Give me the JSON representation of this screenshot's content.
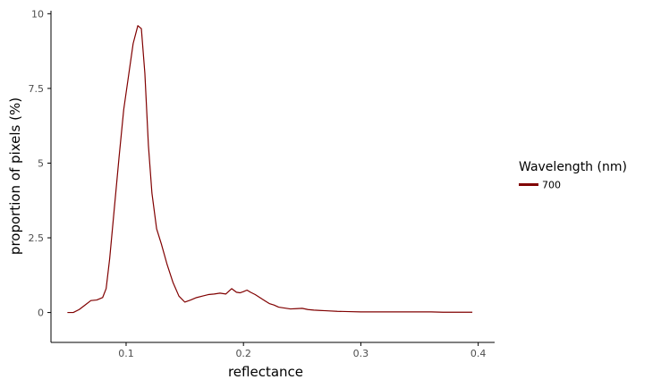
{
  "chart_data": {
    "type": "line",
    "xlabel": "reflectance",
    "ylabel": "proportion of pixels (%)",
    "xlim": [
      0.036,
      0.414
    ],
    "ylim": [
      -1.0,
      10.1
    ],
    "x_ticks": [
      0.1,
      0.2,
      0.3,
      0.4
    ],
    "x_tick_labels": [
      "0.1",
      "0.2",
      "0.3",
      "0.4"
    ],
    "y_ticks": [
      0,
      2.5,
      5,
      7.5,
      10
    ],
    "y_tick_labels": [
      "0",
      "2.5",
      "5",
      "7.5",
      "10"
    ],
    "grid": false,
    "legend": {
      "title": "Wavelength (nm)",
      "position": "right"
    },
    "series": [
      {
        "name": "700",
        "color": "#800000",
        "x": [
          0.05,
          0.055,
          0.06,
          0.065,
          0.07,
          0.075,
          0.08,
          0.083,
          0.086,
          0.09,
          0.094,
          0.098,
          0.102,
          0.106,
          0.11,
          0.113,
          0.116,
          0.119,
          0.122,
          0.126,
          0.13,
          0.135,
          0.14,
          0.145,
          0.15,
          0.155,
          0.16,
          0.165,
          0.17,
          0.175,
          0.18,
          0.185,
          0.19,
          0.194,
          0.197,
          0.2,
          0.203,
          0.206,
          0.21,
          0.214,
          0.218,
          0.222,
          0.226,
          0.23,
          0.235,
          0.24,
          0.245,
          0.25,
          0.255,
          0.26,
          0.265,
          0.27,
          0.28,
          0.29,
          0.3,
          0.31,
          0.32,
          0.33,
          0.34,
          0.35,
          0.36,
          0.37,
          0.38,
          0.39,
          0.395
        ],
        "y": [
          0.0,
          0.0,
          0.1,
          0.25,
          0.4,
          0.42,
          0.5,
          0.8,
          1.8,
          3.5,
          5.2,
          6.8,
          7.9,
          9.0,
          9.6,
          9.5,
          8.0,
          5.6,
          4.0,
          2.8,
          2.3,
          1.6,
          1.0,
          0.55,
          0.35,
          0.42,
          0.5,
          0.55,
          0.6,
          0.62,
          0.65,
          0.62,
          0.8,
          0.68,
          0.66,
          0.7,
          0.75,
          0.68,
          0.6,
          0.5,
          0.4,
          0.3,
          0.25,
          0.18,
          0.15,
          0.12,
          0.13,
          0.14,
          0.1,
          0.08,
          0.07,
          0.06,
          0.04,
          0.03,
          0.02,
          0.02,
          0.02,
          0.02,
          0.02,
          0.02,
          0.02,
          0.01,
          0.01,
          0.01,
          0.01
        ]
      }
    ]
  }
}
